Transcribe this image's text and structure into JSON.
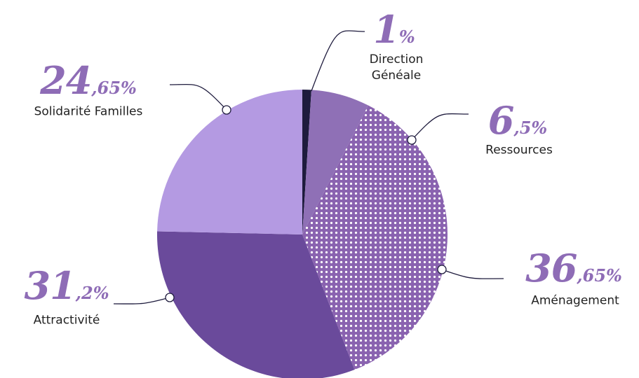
{
  "chart_data": {
    "type": "pie",
    "categories": [
      "Direction Généale",
      "Ressources",
      "Aménagement",
      "Attractivité",
      "Solidarité Familles"
    ],
    "values": [
      1,
      6.5,
      36.65,
      31.2,
      24.65
    ],
    "value_labels": [
      "1%",
      "6,5%",
      "36,65%",
      "31,2%",
      "24,65%"
    ],
    "colors": [
      "#1e1b3d",
      "#8f70b6",
      "#8a63b0",
      "#6a4a9b",
      "#b49ae2"
    ],
    "dotted": [
      false,
      false,
      true,
      false,
      false
    ]
  }
}
